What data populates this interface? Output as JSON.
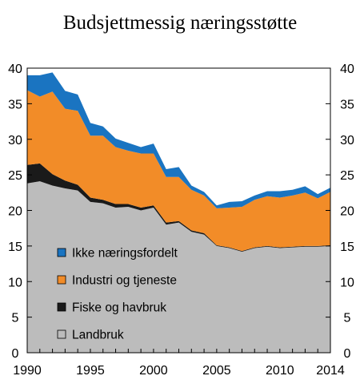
{
  "chart_data": {
    "type": "area",
    "stacked": true,
    "title": "Budsjettmessig næringsstøtte",
    "x": [
      1990,
      1991,
      1992,
      1993,
      1994,
      1995,
      1996,
      1997,
      1998,
      1999,
      2000,
      2001,
      2002,
      2003,
      2004,
      2005,
      2006,
      2007,
      2008,
      2009,
      2010,
      2011,
      2012,
      2013,
      2014
    ],
    "series": [
      {
        "name": "Landbruk",
        "color": "#bcbcbc",
        "values": [
          23.8,
          24.1,
          23.5,
          23.1,
          22.8,
          21.2,
          21.0,
          20.4,
          20.5,
          20.0,
          20.4,
          18.0,
          18.3,
          17.0,
          16.6,
          15.0,
          14.7,
          14.2,
          14.7,
          14.9,
          14.7,
          14.8,
          14.9,
          14.9,
          15.0
        ]
      },
      {
        "name": "Fiske og havbruk",
        "color": "#1a1a1a",
        "values": [
          2.6,
          2.5,
          1.6,
          1.1,
          0.8,
          0.6,
          0.5,
          0.5,
          0.4,
          0.4,
          0.3,
          0.3,
          0.2,
          0.2,
          0.2,
          0.1,
          0.1,
          0.1,
          0.1,
          0.1,
          0.1,
          0.1,
          0.1,
          0.1,
          0.1
        ]
      },
      {
        "name": "Industri og tjeneste",
        "color": "#f28c28",
        "values": [
          10.5,
          9.4,
          11.6,
          10.1,
          10.4,
          8.7,
          9.0,
          8.0,
          7.5,
          7.6,
          7.3,
          6.4,
          6.2,
          5.7,
          5.3,
          5.2,
          5.6,
          6.2,
          6.7,
          7.0,
          7.0,
          7.2,
          7.5,
          6.7,
          7.5
        ]
      },
      {
        "name": "Ikke næringsfordelt",
        "color": "#1a74c1",
        "values": [
          2.1,
          3.0,
          2.7,
          2.5,
          2.3,
          1.8,
          1.3,
          1.2,
          1.1,
          0.9,
          1.4,
          1.1,
          1.4,
          0.6,
          0.5,
          0.4,
          0.8,
          0.8,
          0.6,
          0.7,
          0.9,
          0.8,
          0.9,
          0.6,
          0.6
        ]
      }
    ],
    "xlim": [
      1990,
      2014
    ],
    "ylim": [
      0,
      40
    ],
    "x_ticks": [
      1990,
      1995,
      2000,
      2005,
      2010,
      2014
    ],
    "y_ticks": [
      0,
      5,
      10,
      15,
      20,
      25,
      30,
      35,
      40
    ],
    "y_axis_both_sides": true,
    "grid": false,
    "legend_position": "lower-left inside plot",
    "legend_order": [
      "Ikke næringsfordelt",
      "Industri og tjeneste",
      "Fiske og havbruk",
      "Landbruk"
    ]
  }
}
